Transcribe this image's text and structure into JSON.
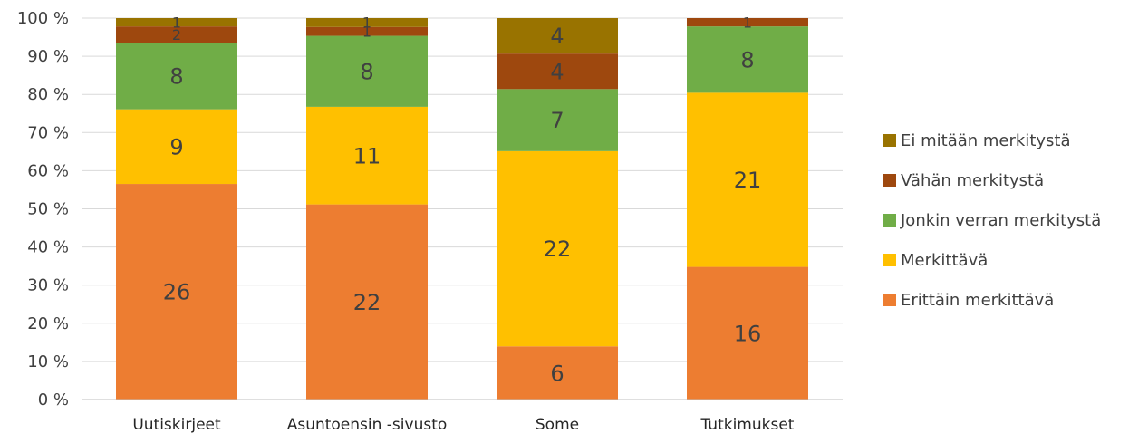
{
  "chart_data": {
    "type": "bar",
    "stacked": true,
    "normalized": true,
    "categories": [
      "Uutiskirjeet",
      "Asuntoensin -sivusto",
      "Some",
      "Tutkimukset"
    ],
    "series": [
      {
        "name": "Erittäin merkittävä",
        "values": [
          26,
          22,
          6,
          16
        ],
        "color": "#ED7D31"
      },
      {
        "name": "Merkittävä",
        "values": [
          9,
          11,
          22,
          21
        ],
        "color": "#FFC000"
      },
      {
        "name": "Jonkin verran merkitystä",
        "values": [
          8,
          8,
          7,
          8
        ],
        "color": "#70AD47"
      },
      {
        "name": "Vähän merkitystä",
        "values": [
          2,
          1,
          4,
          1
        ],
        "color": "#9E480E"
      },
      {
        "name": "Ei mitään merkitystä",
        "values": [
          1,
          1,
          4,
          0
        ],
        "color": "#997300"
      }
    ],
    "y_ticks": [
      "0 %",
      "10 %",
      "20 %",
      "30 %",
      "40 %",
      "50 %",
      "60 %",
      "70 %",
      "80 %",
      "90 %",
      "100 %"
    ],
    "ylim": [
      0,
      100
    ],
    "grid": true,
    "legend_position": "right",
    "legend_order": [
      "Ei mitään merkitystä",
      "Vähän merkitystä",
      "Jonkin verran merkitystä",
      "Merkittävä",
      "Erittäin merkittävä"
    ]
  }
}
